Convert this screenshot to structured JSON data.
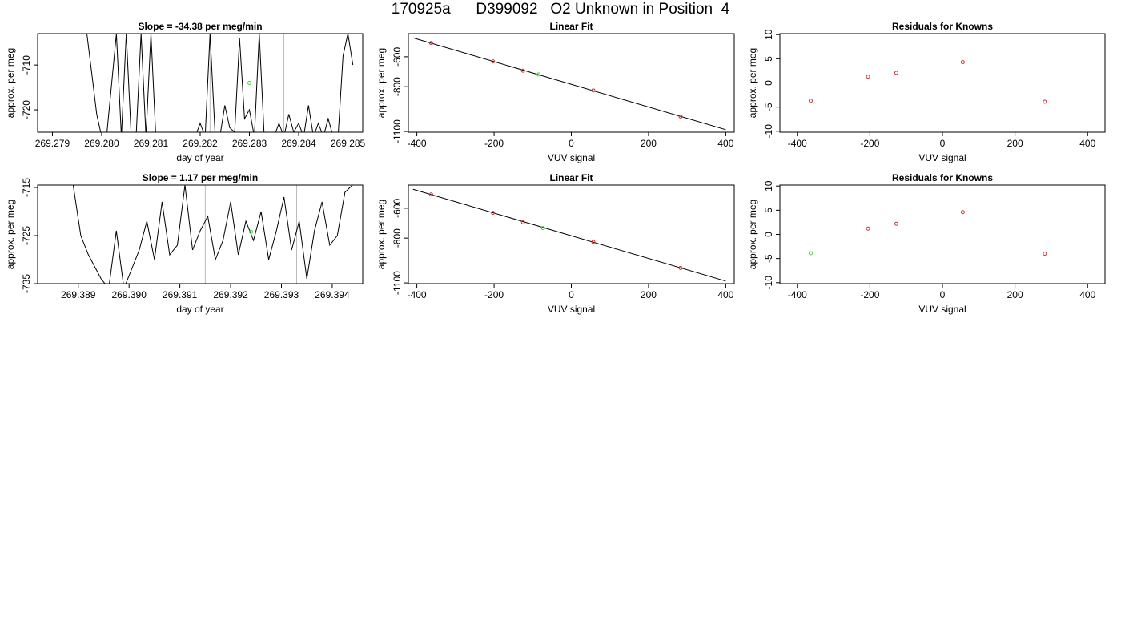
{
  "page": {
    "title": "170925a      D399092   O2 Unknown in Position  4"
  },
  "chart_data": [
    {
      "type": "line",
      "title": "Slope =  -34.38  per meg/min",
      "xlabel": "day of year",
      "ylabel": "approx. per meg",
      "xlim": [
        269.2787,
        269.2853
      ],
      "ylim": [
        -725,
        -703
      ],
      "xticks": [
        269.279,
        269.28,
        269.281,
        269.282,
        269.283,
        269.284,
        269.285
      ],
      "xtick_labels": [
        "269.279",
        "269.280",
        "269.281",
        "269.282",
        "269.283",
        "269.284",
        "269.285"
      ],
      "yticks": [
        -720,
        -710
      ],
      "ytick_labels": [
        "-720",
        "-710"
      ],
      "vlines": [
        269.2822,
        269.2837
      ],
      "series": [
        {
          "color": "#000000",
          "x": [
            269.2797,
            269.2798,
            269.2799,
            269.28,
            269.2801,
            269.2803,
            269.2804,
            269.2805,
            269.2806,
            269.2807,
            269.2808,
            269.2809,
            269.281,
            269.2811,
            269.2812,
            269.2813,
            269.2814,
            269.2815,
            269.2816,
            269.2817,
            269.2818,
            269.2819,
            269.282,
            269.2821,
            269.2822,
            269.2823,
            269.2824,
            269.2825,
            269.2826,
            269.2827,
            269.2828,
            269.2829,
            269.283,
            269.2831,
            269.2832,
            269.2833,
            269.2834,
            269.2835,
            269.2836,
            269.2837,
            269.2838,
            269.2839,
            269.284,
            269.2841,
            269.2842,
            269.2843,
            269.2844,
            269.2845,
            269.2846,
            269.2847,
            269.2848,
            269.2849,
            269.285,
            269.2851
          ],
          "y": [
            -703,
            -712,
            -721,
            -726,
            -726,
            -703,
            -726,
            -703,
            -726,
            -726,
            -703,
            -726,
            -703,
            -726,
            -726,
            -726,
            -726,
            -726,
            -725,
            -726,
            -726,
            -726,
            -723,
            -726,
            -703,
            -725,
            -726,
            -719,
            -724,
            -725,
            -704,
            -722,
            -720,
            -726,
            -703,
            -726,
            -726,
            -726,
            -723,
            -726,
            -721,
            -725,
            -723,
            -726,
            -719,
            -726,
            -723,
            -726,
            -722,
            -726,
            -726,
            -708,
            -703,
            -710
          ]
        }
      ],
      "points": [
        {
          "x": 269.283,
          "y": -714,
          "color": "#33dd33"
        }
      ]
    },
    {
      "type": "scatter",
      "title": "Linear Fit",
      "xlabel": "VUV signal",
      "ylabel": "approx. per meg",
      "xlim": [
        -422,
        422
      ],
      "ylim": [
        -1105,
        -445
      ],
      "xticks": [
        -400,
        -200,
        0,
        200,
        400
      ],
      "xtick_labels": [
        "-400",
        "-200",
        "0",
        "200",
        "400"
      ],
      "yticks": [
        -1100,
        -800,
        -600
      ],
      "ytick_labels": [
        "-1100",
        "-800",
        "-600"
      ],
      "fit_line": {
        "x": [
          -410,
          400
        ],
        "y": [
          -473,
          -1088
        ]
      },
      "points": [
        {
          "x": -363,
          "y": -508,
          "color": "#cc3333"
        },
        {
          "x": -203,
          "y": -631,
          "color": "#cc3333"
        },
        {
          "x": -125,
          "y": -693,
          "color": "#cc3333"
        },
        {
          "x": 57,
          "y": -825,
          "color": "#cc3333"
        },
        {
          "x": 283,
          "y": -1000,
          "color": "#cc3333"
        },
        {
          "x": -85,
          "y": -718,
          "color": "#33dd33"
        }
      ]
    },
    {
      "type": "scatter",
      "title": "Residuals for Knowns",
      "xlabel": "VUV signal",
      "ylabel": "approx. per meg",
      "xlim": [
        -448,
        448
      ],
      "ylim": [
        -10.2,
        10.2
      ],
      "xticks": [
        -400,
        -200,
        0,
        200,
        400
      ],
      "xtick_labels": [
        "-400",
        "-200",
        "0",
        "200",
        "400"
      ],
      "yticks": [
        -10,
        -5,
        0,
        5,
        10
      ],
      "ytick_labels": [
        "-10",
        "-5",
        "0",
        "5",
        "10"
      ],
      "points": [
        {
          "x": -363,
          "y": -3.7,
          "color": "#cc3333"
        },
        {
          "x": -205,
          "y": 1.3,
          "color": "#cc3333"
        },
        {
          "x": -127,
          "y": 2.1,
          "color": "#cc3333"
        },
        {
          "x": 56,
          "y": 4.3,
          "color": "#cc3333"
        },
        {
          "x": 282,
          "y": -3.9,
          "color": "#cc3333"
        }
      ]
    },
    {
      "type": "line",
      "title": "Slope =  1.17  per meg/min",
      "xlabel": "day of year",
      "ylabel": "approx. per meg",
      "xlim": [
        269.3882,
        269.3946
      ],
      "ylim": [
        -735,
        -714.5
      ],
      "xticks": [
        269.389,
        269.39,
        269.391,
        269.392,
        269.393,
        269.394
      ],
      "xtick_labels": [
        "269.389",
        "269.390",
        "269.391",
        "269.392",
        "269.393",
        "269.394"
      ],
      "yticks": [
        -735,
        -725,
        -715
      ],
      "ytick_labels": [
        "-735",
        "-725",
        "-715"
      ],
      "vlines": [
        269.3915,
        269.3933
      ],
      "series": [
        {
          "color": "#000000",
          "x": [
            269.3889,
            269.38905,
            269.3892,
            269.3893,
            269.38945,
            269.3896,
            269.38975,
            269.3899,
            269.39005,
            269.3902,
            269.39035,
            269.3905,
            269.39065,
            269.3908,
            269.39095,
            269.3911,
            269.39125,
            269.3914,
            269.39155,
            269.3917,
            269.39185,
            269.392,
            269.39215,
            269.3923,
            269.39245,
            269.3926,
            269.39275,
            269.3929,
            269.39305,
            269.3932,
            269.39335,
            269.3935,
            269.39365,
            269.3938,
            269.39395,
            269.3941,
            269.39425,
            269.3944
          ],
          "y": [
            -714.5,
            -725,
            -729,
            -731,
            -734,
            -736,
            -724,
            -736,
            -732,
            -728,
            -722,
            -730,
            -718,
            -729,
            -727,
            -714.5,
            -728,
            -724,
            -721,
            -730,
            -726,
            -718,
            -729,
            -722,
            -726,
            -720,
            -730,
            -724,
            -717,
            -728,
            -722,
            -734,
            -724,
            -718,
            -727,
            -725,
            -716,
            -714.5
          ]
        }
      ],
      "points": [
        {
          "x": 269.3924,
          "y": -724.2,
          "color": "#33dd33"
        }
      ]
    },
    {
      "type": "scatter",
      "title": "Linear Fit",
      "xlabel": "VUV signal",
      "ylabel": "approx. per meg",
      "xlim": [
        -422,
        422
      ],
      "ylim": [
        -1105,
        -445
      ],
      "xticks": [
        -400,
        -200,
        0,
        200,
        400
      ],
      "xtick_labels": [
        "-400",
        "-200",
        "0",
        "200",
        "400"
      ],
      "yticks": [
        -1100,
        -800,
        -600
      ],
      "ytick_labels": [
        "-1100",
        "-800",
        "-600"
      ],
      "fit_line": {
        "x": [
          -410,
          400
        ],
        "y": [
          -473,
          -1088
        ]
      },
      "points": [
        {
          "x": -363,
          "y": -508,
          "color": "#cc3333"
        },
        {
          "x": -203,
          "y": -631,
          "color": "#cc3333"
        },
        {
          "x": -125,
          "y": -693,
          "color": "#cc3333"
        },
        {
          "x": 57,
          "y": -825,
          "color": "#cc3333"
        },
        {
          "x": 283,
          "y": -1000,
          "color": "#cc3333"
        },
        {
          "x": -73,
          "y": -733,
          "color": "#33dd33"
        }
      ]
    },
    {
      "type": "scatter",
      "title": "Residuals for Knowns",
      "xlabel": "VUV signal",
      "ylabel": "approx. per meg",
      "xlim": [
        -448,
        448
      ],
      "ylim": [
        -10.2,
        10.2
      ],
      "xticks": [
        -400,
        -200,
        0,
        200,
        400
      ],
      "xtick_labels": [
        "-400",
        "-200",
        "0",
        "200",
        "400"
      ],
      "yticks": [
        -10,
        -5,
        0,
        5,
        10
      ],
      "ytick_labels": [
        "-10",
        "-5",
        "0",
        "5",
        "10"
      ],
      "points": [
        {
          "x": -363,
          "y": -3.9,
          "color": "#33dd33"
        },
        {
          "x": -205,
          "y": 1.2,
          "color": "#cc3333"
        },
        {
          "x": -127,
          "y": 2.2,
          "color": "#cc3333"
        },
        {
          "x": 56,
          "y": 4.6,
          "color": "#cc3333"
        },
        {
          "x": 282,
          "y": -4.0,
          "color": "#cc3333"
        }
      ]
    }
  ]
}
